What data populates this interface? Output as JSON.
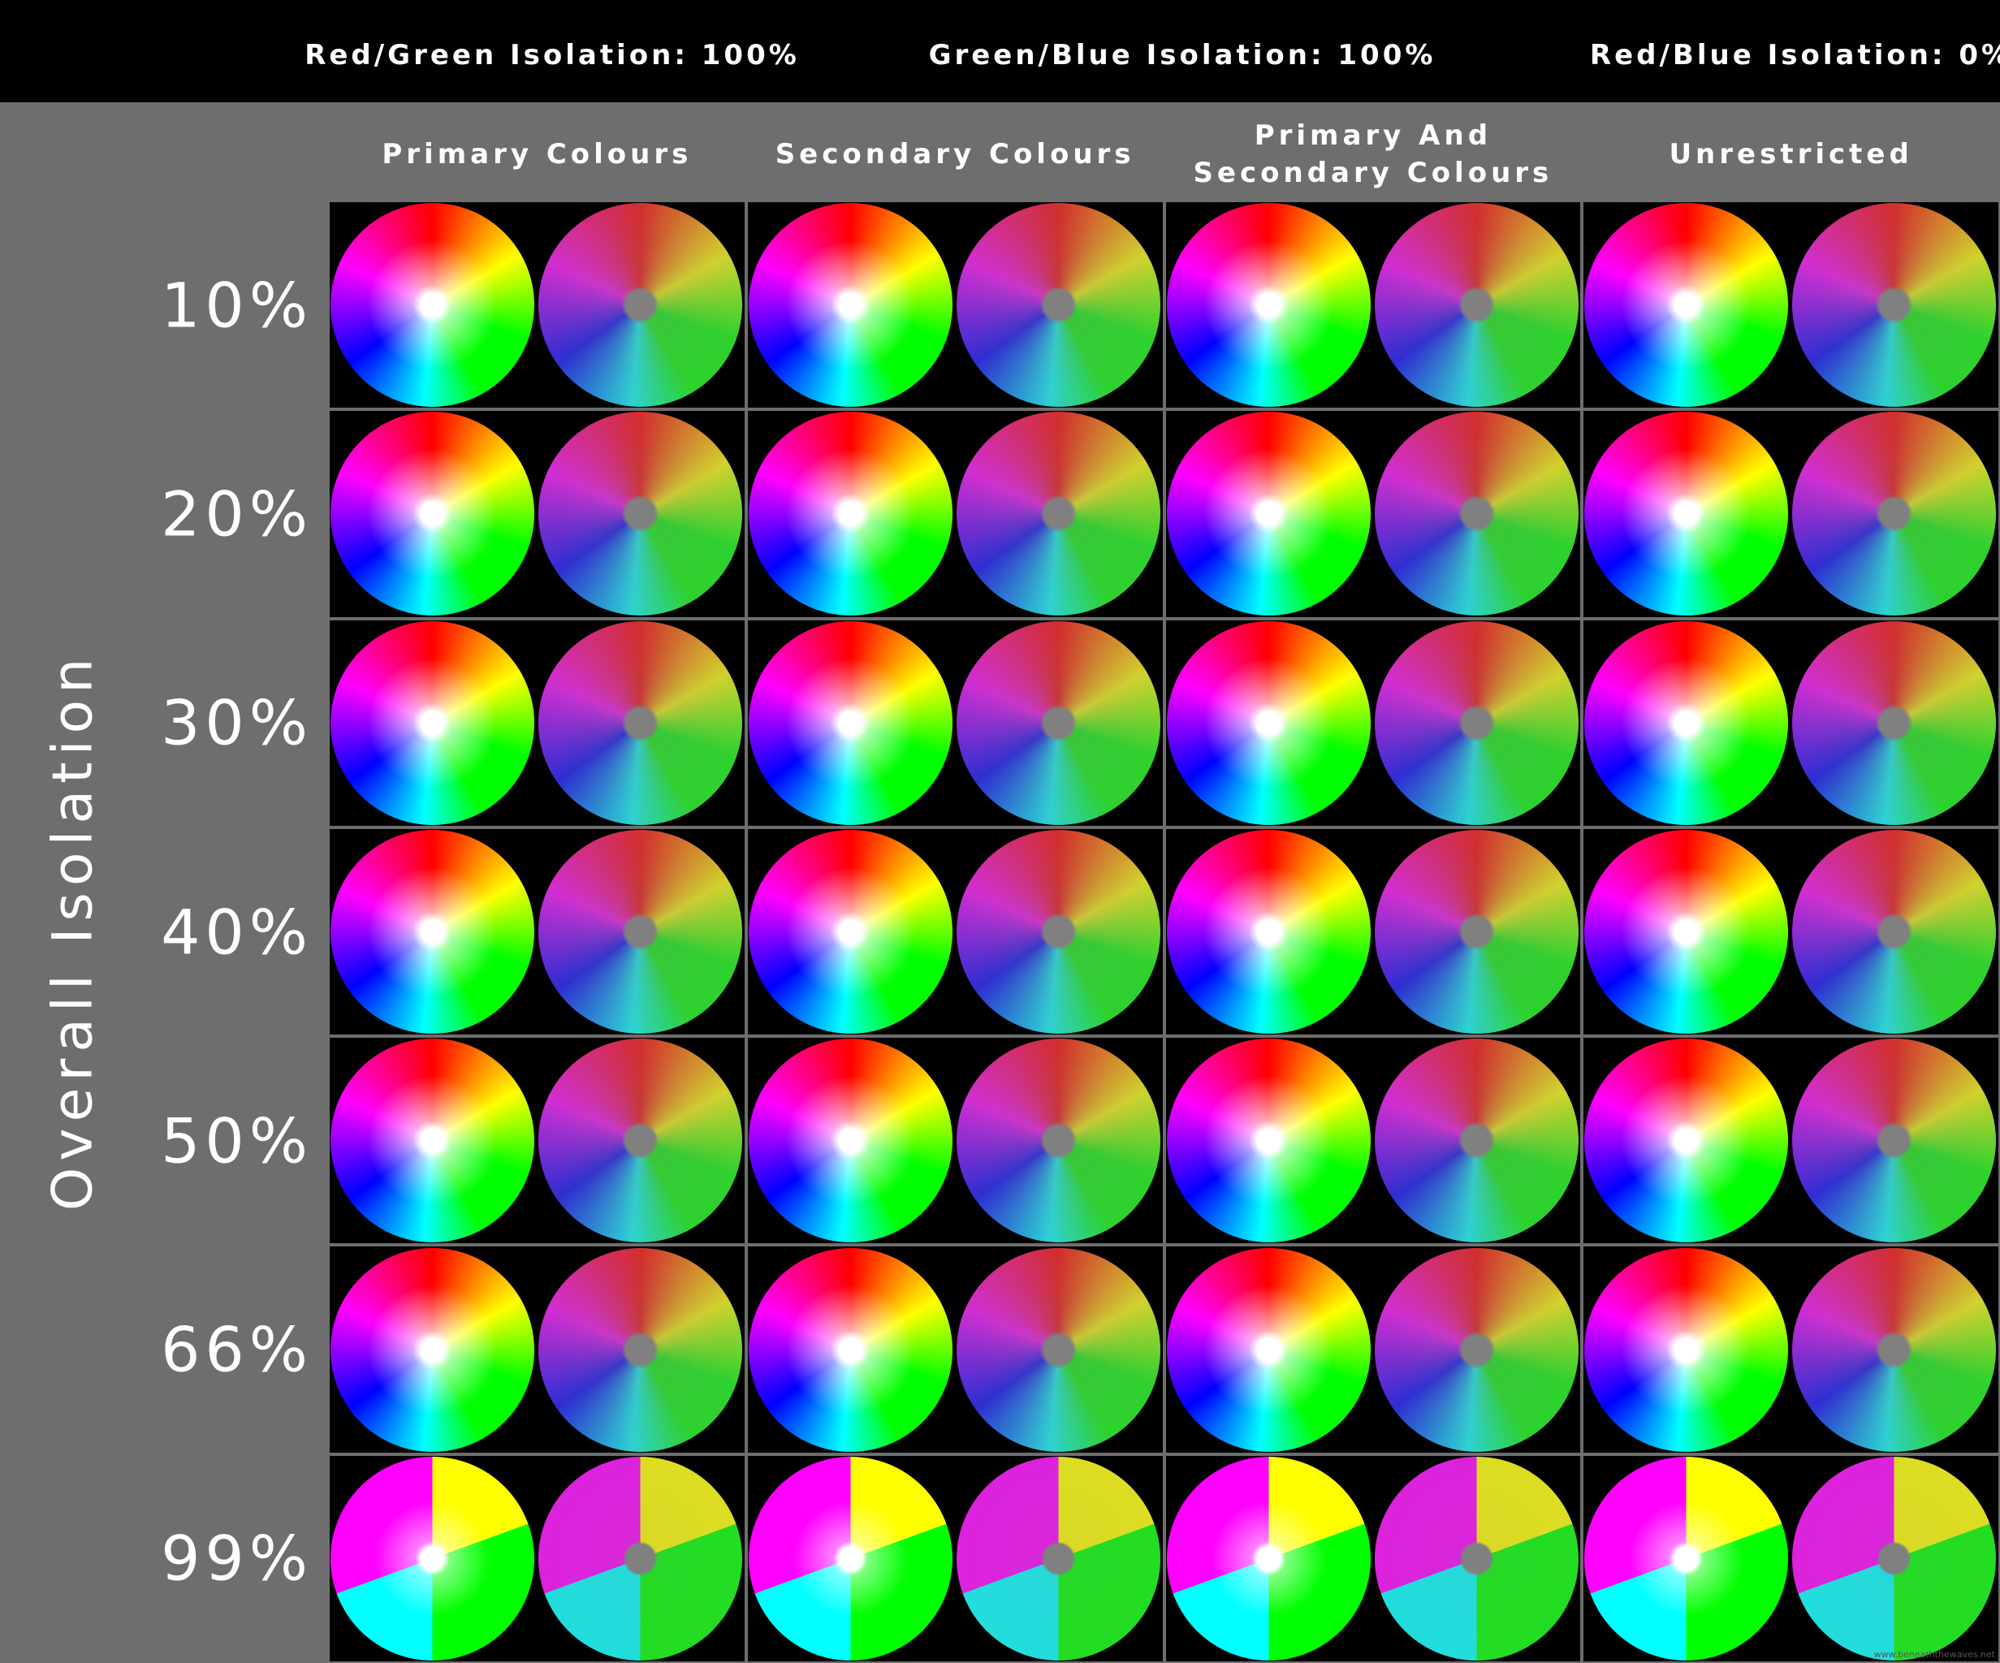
{
  "header": {
    "isolation_settings": [
      "Red/Green Isolation: 100%",
      "Green/Blue Isolation: 100%",
      "Red/Blue Isolation: 0%"
    ]
  },
  "side_label": "Overall Isolation",
  "columns": [
    "Primary Colours",
    "Secondary Colours",
    "Primary And Secondary Colours",
    "Unrestricted"
  ],
  "rows": [
    "10%",
    "20%",
    "30%",
    "40%",
    "50%",
    "66%",
    "99%"
  ],
  "watermark": "www.beneaththewaves.net"
}
